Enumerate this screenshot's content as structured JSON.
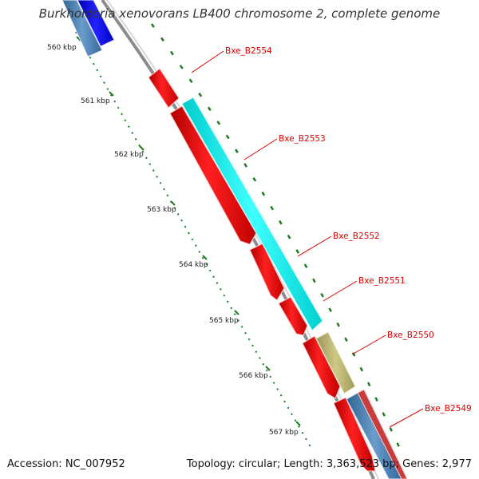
{
  "header": {
    "title": "Burkholderia xenovorans LB400 chromosome 2, complete genome"
  },
  "footer": {
    "accession": "Accession: NC_007952",
    "summary": "Topology: circular; Length: 3,363,523 bp; Genes: 2,977"
  },
  "ruler": {
    "tick_labels": [
      "560 kbp",
      "561 kbp",
      "562 kbp",
      "563 kbp",
      "564 kbp",
      "565 kbp",
      "566 kbp",
      "567 kbp"
    ]
  },
  "genes": [
    {
      "label": "Bxe_B2554",
      "color": "#ff0000"
    },
    {
      "label": "Bxe_B2553",
      "color": "#00ffff"
    },
    {
      "label": "Bxe_B2552",
      "color": "#ff0000"
    },
    {
      "label": "Bxe_B2551",
      "color": "#ff0000"
    },
    {
      "label": "Bxe_B2550",
      "color": "#bdb76b"
    },
    {
      "label": "Bxe_B2549",
      "color": "#4682b4"
    }
  ],
  "colors": {
    "backbone": "#8c8c8c",
    "gene_label": "#dd0000",
    "ruler_dots": "#1e7b1e",
    "blue_feature": "#0000ff",
    "steelblue_feature": "#4682b4"
  }
}
